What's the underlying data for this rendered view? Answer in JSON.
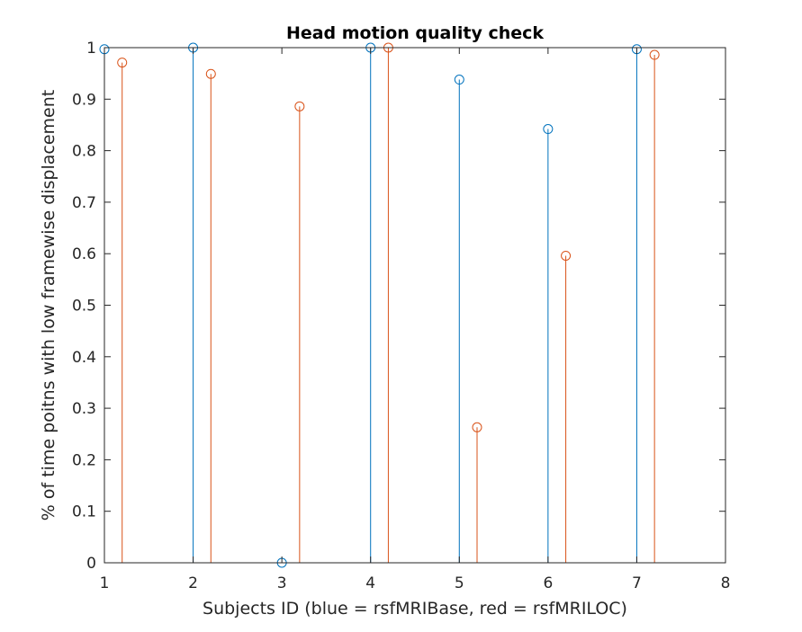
{
  "chart_data": {
    "type": "stem",
    "title": "Head motion quality check",
    "xlabel": "Subjects ID (blue = rsfMRIBase, red = rsfMRILOC)",
    "ylabel": "% of time poitns with low framewise displacement",
    "xlim": [
      1,
      8
    ],
    "ylim": [
      0,
      1
    ],
    "xticks": [
      "1",
      "2",
      "3",
      "4",
      "5",
      "6",
      "7",
      "8"
    ],
    "yticks": [
      "0",
      "0.1",
      "0.2",
      "0.3",
      "0.4",
      "0.5",
      "0.6",
      "0.7",
      "0.8",
      "0.9",
      "1"
    ],
    "grid": false,
    "series": [
      {
        "color": "#0072BD",
        "x": [
          1,
          2,
          3,
          4,
          5,
          6,
          7
        ],
        "values": [
          0.997,
          1.0,
          0.0,
          1.0,
          0.938,
          0.842,
          0.997
        ]
      },
      {
        "color": "#D95319",
        "x": [
          1.2,
          2.2,
          3.2,
          4.2,
          5.2,
          6.2,
          7.2
        ],
        "values": [
          0.971,
          0.949,
          0.886,
          1.0,
          0.263,
          0.596,
          0.986
        ]
      }
    ]
  }
}
